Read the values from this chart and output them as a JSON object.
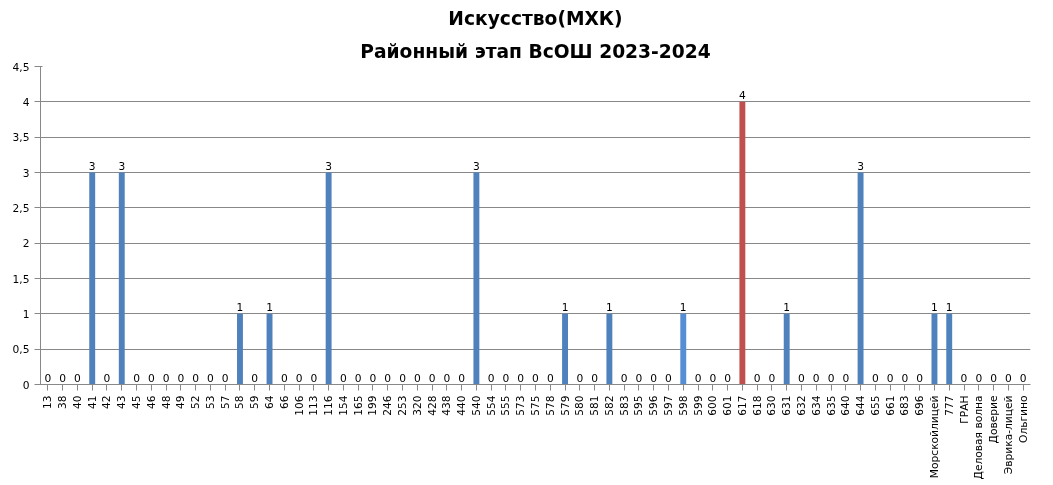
{
  "chart_data": {
    "type": "bar",
    "title": "Искусство(МХК)",
    "subtitle": "Районный этап ВсОШ 2023-2024",
    "categories": [
      "13",
      "38",
      "40",
      "41",
      "42",
      "43",
      "45",
      "46",
      "48",
      "49",
      "52",
      "53",
      "57",
      "58",
      "59",
      "64",
      "66",
      "106",
      "113",
      "116",
      "154",
      "165",
      "199",
      "246",
      "253",
      "320",
      "428",
      "438",
      "440",
      "540",
      "554",
      "555",
      "573",
      "575",
      "578",
      "579",
      "580",
      "581",
      "582",
      "583",
      "595",
      "596",
      "597",
      "598",
      "599",
      "600",
      "601",
      "617",
      "618",
      "630",
      "631",
      "632",
      "634",
      "635",
      "640",
      "644",
      "655",
      "661",
      "683",
      "696",
      "Морскойлицей",
      "777",
      "ГРАН",
      "Деловая волна",
      "Доверие",
      "Эврика-лицей",
      "Ольгино"
    ],
    "values": [
      0,
      0,
      0,
      3,
      0,
      3,
      0,
      0,
      0,
      0,
      0,
      0,
      0,
      1,
      0,
      1,
      0,
      0,
      0,
      3,
      0,
      0,
      0,
      0,
      0,
      0,
      0,
      0,
      0,
      3,
      0,
      0,
      0,
      0,
      0,
      1,
      0,
      0,
      1,
      0,
      0,
      0,
      0,
      1,
      0,
      0,
      0,
      4,
      0,
      0,
      1,
      0,
      0,
      0,
      0,
      3,
      0,
      0,
      0,
      0,
      1,
      1,
      0,
      0,
      0,
      0,
      0
    ],
    "colors": [
      "#4f81bd",
      "#4f81bd",
      "#4f81bd",
      "#4f81bd",
      "#4f81bd",
      "#4f81bd",
      "#4f81bd",
      "#4f81bd",
      "#4f81bd",
      "#4f81bd",
      "#4f81bd",
      "#4f81bd",
      "#4f81bd",
      "#4f81bd",
      "#4f81bd",
      "#4f81bd",
      "#4f81bd",
      "#4f81bd",
      "#4f81bd",
      "#4f81bd",
      "#4f81bd",
      "#4f81bd",
      "#4f81bd",
      "#4f81bd",
      "#4f81bd",
      "#4f81bd",
      "#4f81bd",
      "#4f81bd",
      "#4f81bd",
      "#4f81bd",
      "#4f81bd",
      "#4f81bd",
      "#4f81bd",
      "#4f81bd",
      "#4f81bd",
      "#4f81bd",
      "#4f81bd",
      "#4f81bd",
      "#4f81bd",
      "#4f81bd",
      "#4f81bd",
      "#4f81bd",
      "#4f81bd",
      "#558ed5",
      "#4f81bd",
      "#4f81bd",
      "#4f81bd",
      "#c0504d",
      "#4f81bd",
      "#4f81bd",
      "#4f81bd",
      "#4f81bd",
      "#4f81bd",
      "#4f81bd",
      "#4f81bd",
      "#4f81bd",
      "#4f81bd",
      "#4f81bd",
      "#4f81bd",
      "#4f81bd",
      "#4f81bd",
      "#4f81bd",
      "#4f81bd",
      "#4f81bd",
      "#4f81bd",
      "#4f81bd",
      "#4f81bd"
    ],
    "ylim": [
      0,
      4.5
    ],
    "yticks": [
      {
        "value": 0,
        "label": "0"
      },
      {
        "value": 0.5,
        "label": "0,5"
      },
      {
        "value": 1,
        "label": "1"
      },
      {
        "value": 1.5,
        "label": "1,5"
      },
      {
        "value": 2,
        "label": "2"
      },
      {
        "value": 2.5,
        "label": "2,5"
      },
      {
        "value": 3,
        "label": "3"
      },
      {
        "value": 3.5,
        "label": "3,5"
      },
      {
        "value": 4,
        "label": "4"
      },
      {
        "value": 4.5,
        "label": "4,5"
      }
    ],
    "grid": "y",
    "data_labels": true
  }
}
